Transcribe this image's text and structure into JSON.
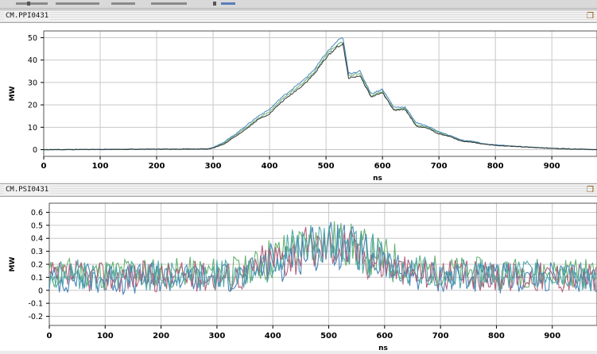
{
  "colors": {
    "grid": "#c8c8c8",
    "axis": "#000000",
    "series_green": "#5fae6a",
    "series_blue": "#3f7fb5",
    "series_red": "#b05a78",
    "series_teal": "#4aa5a8",
    "series_dark": "#2b2b2b"
  },
  "panels": [
    {
      "title": "CM.PPI0431",
      "icon": "restore-icon"
    },
    {
      "title": "CM.PSI0431",
      "icon": "restore-icon"
    }
  ],
  "chart_data": [
    {
      "type": "line",
      "title": "CM.PPI0431",
      "xlabel": "ns",
      "ylabel": "MW",
      "xlim": [
        0,
        980
      ],
      "ylim": [
        -3,
        53
      ],
      "xticks": [
        0,
        100,
        200,
        300,
        400,
        500,
        600,
        700,
        800,
        900
      ],
      "yticks": [
        0,
        10,
        20,
        30,
        40,
        50
      ],
      "grid": true,
      "series": [
        {
          "color": "#5fae6a",
          "x": [
            0,
            100,
            200,
            290,
            300,
            320,
            340,
            360,
            380,
            400,
            420,
            440,
            460,
            480,
            500,
            520,
            530,
            540,
            560,
            580,
            600,
            620,
            640,
            660,
            680,
            700,
            720,
            740,
            760,
            780,
            800,
            850,
            900,
            950,
            980
          ],
          "y": [
            0,
            0.1,
            0.2,
            0.3,
            1,
            3,
            6.5,
            10,
            14,
            17,
            22,
            26,
            30,
            35,
            42,
            47,
            48,
            33,
            34,
            24,
            26,
            18,
            18.5,
            11,
            10,
            7.5,
            6,
            4,
            3.5,
            2.5,
            2,
            1.3,
            0.6,
            0.2,
            0
          ]
        },
        {
          "color": "#3f7fb5",
          "x": [
            0,
            100,
            200,
            290,
            300,
            320,
            340,
            360,
            380,
            400,
            420,
            440,
            460,
            480,
            500,
            520,
            530,
            540,
            560,
            580,
            600,
            620,
            640,
            660,
            680,
            700,
            720,
            740,
            760,
            780,
            800,
            850,
            900,
            950,
            980
          ],
          "y": [
            0,
            0.1,
            0.2,
            0.3,
            1,
            3.5,
            7,
            11,
            15,
            18,
            23,
            27,
            31,
            36,
            43,
            48.5,
            50,
            34,
            35,
            25,
            27,
            19,
            19,
            12,
            10.5,
            8,
            6.3,
            4.3,
            3.7,
            2.6,
            2.1,
            1.3,
            0.6,
            0.2,
            0
          ]
        },
        {
          "color": "#2b2b2b",
          "x": [
            0,
            100,
            200,
            290,
            300,
            320,
            340,
            360,
            380,
            400,
            420,
            440,
            460,
            480,
            500,
            520,
            530,
            540,
            560,
            580,
            600,
            620,
            640,
            660,
            680,
            700,
            720,
            740,
            760,
            780,
            800,
            850,
            900,
            950,
            980
          ],
          "y": [
            0,
            0.1,
            0.2,
            0.3,
            0.8,
            2.5,
            6,
            9.5,
            13.5,
            16,
            21,
            25,
            29,
            34,
            41,
            46,
            47,
            32,
            33,
            23.5,
            25.5,
            17.5,
            18,
            10.5,
            9.5,
            7,
            5.8,
            3.8,
            3.3,
            2.4,
            1.9,
            1.2,
            0.5,
            0.2,
            0
          ]
        }
      ]
    },
    {
      "type": "line",
      "title": "CM.PSI0431",
      "xlabel": "ns",
      "ylabel": "MW",
      "xlim": [
        0,
        980
      ],
      "ylim": [
        -0.27,
        0.67
      ],
      "xticks": [
        0,
        100,
        200,
        300,
        400,
        500,
        600,
        700,
        800,
        900
      ],
      "yticks": [
        -0.2,
        -0.1,
        0,
        0.1,
        0.2,
        0.3,
        0.4,
        0.5,
        0.6
      ],
      "grid": true,
      "series": [
        {
          "color": "#5fae6a",
          "x": [
            0,
            50,
            100,
            150,
            200,
            250,
            300,
            350,
            380,
            420,
            450,
            480,
            500,
            520,
            550,
            580,
            620,
            650,
            700,
            750,
            800,
            850,
            900,
            950,
            980
          ],
          "y": [
            0.12,
            0.14,
            0.13,
            0.15,
            0.13,
            0.14,
            0.14,
            0.15,
            0.22,
            0.28,
            0.32,
            0.36,
            0.38,
            0.37,
            0.33,
            0.27,
            0.2,
            0.17,
            0.15,
            0.14,
            0.13,
            0.14,
            0.14,
            0.13,
            0.13
          ]
        },
        {
          "color": "#3f7fb5",
          "x": [
            0,
            50,
            100,
            150,
            200,
            250,
            300,
            350,
            380,
            420,
            450,
            480,
            500,
            520,
            550,
            580,
            620,
            650,
            700,
            750,
            800,
            850,
            900,
            950,
            980
          ],
          "y": [
            0.08,
            0.1,
            0.09,
            0.08,
            0.1,
            0.09,
            0.1,
            0.11,
            0.18,
            0.25,
            0.3,
            0.33,
            0.35,
            0.34,
            0.3,
            0.24,
            0.16,
            0.12,
            0.1,
            0.09,
            0.09,
            0.1,
            0.1,
            0.09,
            0.09
          ]
        },
        {
          "color": "#b05a78",
          "x": [
            0,
            50,
            100,
            150,
            200,
            250,
            300,
            350,
            380,
            420,
            450,
            480,
            500,
            520,
            550,
            580,
            620,
            650,
            700,
            750,
            800,
            850,
            900,
            950,
            980
          ],
          "y": [
            0.1,
            0.11,
            0.1,
            0.11,
            0.1,
            0.11,
            0.11,
            0.12,
            0.2,
            0.26,
            0.3,
            0.34,
            0.36,
            0.35,
            0.31,
            0.25,
            0.17,
            0.14,
            0.12,
            0.11,
            0.11,
            0.11,
            0.11,
            0.1,
            0.1
          ]
        },
        {
          "color": "#4aa5a8",
          "x": [
            0,
            50,
            100,
            150,
            200,
            250,
            300,
            350,
            380,
            420,
            450,
            480,
            500,
            520,
            550,
            580,
            620,
            650,
            700,
            750,
            800,
            850,
            900,
            950,
            980
          ],
          "y": [
            0.11,
            0.12,
            0.11,
            0.12,
            0.11,
            0.12,
            0.12,
            0.13,
            0.21,
            0.27,
            0.31,
            0.35,
            0.37,
            0.36,
            0.32,
            0.26,
            0.18,
            0.15,
            0.13,
            0.12,
            0.12,
            0.12,
            0.12,
            0.11,
            0.11
          ]
        }
      ]
    }
  ]
}
